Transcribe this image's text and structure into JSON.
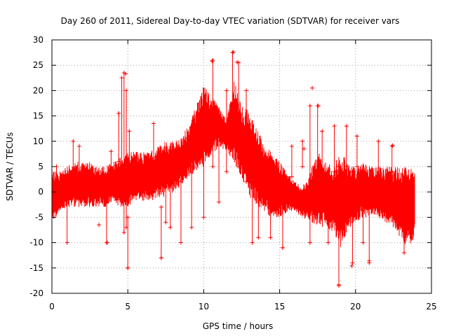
{
  "chart_data": {
    "type": "scatter",
    "title": "Day 260 of 2011, Sidereal Day-to-day VTEC variation (SDTVAR) for receiver vars",
    "xlabel": "GPS time / hours",
    "ylabel": "SDTVAR / TECUs",
    "xlim": [
      0,
      25
    ],
    "ylim": [
      -20,
      30
    ],
    "xticks": [
      0,
      5,
      10,
      15,
      20,
      25
    ],
    "yticks": [
      -20,
      -15,
      -10,
      -5,
      0,
      5,
      10,
      15,
      20,
      25,
      30
    ],
    "grid": true,
    "marker": "+ with error bars",
    "color": "#ff0000",
    "series": [
      {
        "name": "vars",
        "band": [
          {
            "x": 0.0,
            "low": -6,
            "high": 4
          },
          {
            "x": 0.5,
            "low": -4,
            "high": 4
          },
          {
            "x": 1.0,
            "low": -3,
            "high": 5
          },
          {
            "x": 1.5,
            "low": -3,
            "high": 6
          },
          {
            "x": 2.0,
            "low": -3,
            "high": 6
          },
          {
            "x": 2.5,
            "low": -3,
            "high": 6
          },
          {
            "x": 3.0,
            "low": -3,
            "high": 5
          },
          {
            "x": 3.5,
            "low": -3,
            "high": 5
          },
          {
            "x": 4.0,
            "low": -2,
            "high": 6
          },
          {
            "x": 4.5,
            "low": -3,
            "high": 7
          },
          {
            "x": 5.0,
            "low": -3,
            "high": 8
          },
          {
            "x": 5.5,
            "low": -2,
            "high": 8
          },
          {
            "x": 6.0,
            "low": -2,
            "high": 8
          },
          {
            "x": 6.5,
            "low": -2,
            "high": 8
          },
          {
            "x": 7.0,
            "low": -1,
            "high": 9
          },
          {
            "x": 7.5,
            "low": -1,
            "high": 10
          },
          {
            "x": 8.0,
            "low": 0,
            "high": 10
          },
          {
            "x": 8.5,
            "low": 1,
            "high": 11
          },
          {
            "x": 9.0,
            "low": 3,
            "high": 13
          },
          {
            "x": 9.5,
            "low": 4,
            "high": 17
          },
          {
            "x": 10.0,
            "low": 5,
            "high": 21
          },
          {
            "x": 10.5,
            "low": 7,
            "high": 19
          },
          {
            "x": 11.0,
            "low": 9,
            "high": 17
          },
          {
            "x": 11.5,
            "low": 8,
            "high": 14
          },
          {
            "x": 12.0,
            "low": 6,
            "high": 22
          },
          {
            "x": 12.5,
            "low": 2,
            "high": 17
          },
          {
            "x": 13.0,
            "low": -1,
            "high": 16
          },
          {
            "x": 13.5,
            "low": -3,
            "high": 13
          },
          {
            "x": 14.0,
            "low": -4,
            "high": 9
          },
          {
            "x": 14.5,
            "low": -5,
            "high": 8
          },
          {
            "x": 15.0,
            "low": -5,
            "high": 6
          },
          {
            "x": 15.5,
            "low": -4,
            "high": 4
          },
          {
            "x": 16.0,
            "low": -4,
            "high": 2
          },
          {
            "x": 16.5,
            "low": -5,
            "high": 1
          },
          {
            "x": 17.0,
            "low": -6,
            "high": 4
          },
          {
            "x": 17.5,
            "low": -7,
            "high": 8
          },
          {
            "x": 18.0,
            "low": -7,
            "high": 6
          },
          {
            "x": 18.5,
            "low": -8,
            "high": 5
          },
          {
            "x": 19.0,
            "low": -11,
            "high": 8
          },
          {
            "x": 19.5,
            "low": -8,
            "high": 6
          },
          {
            "x": 20.0,
            "low": -6,
            "high": 5
          },
          {
            "x": 20.5,
            "low": -5,
            "high": 6
          },
          {
            "x": 21.0,
            "low": -5,
            "high": 5
          },
          {
            "x": 21.5,
            "low": -5,
            "high": 5
          },
          {
            "x": 22.0,
            "low": -6,
            "high": 5
          },
          {
            "x": 22.5,
            "low": -7,
            "high": 5
          },
          {
            "x": 23.0,
            "low": -10,
            "high": 5
          },
          {
            "x": 23.5,
            "low": -11,
            "high": 5
          },
          {
            "x": 23.9,
            "low": -9,
            "high": 4
          }
        ],
        "spikes": [
          {
            "x": 0.3,
            "low": -2,
            "high": 5
          },
          {
            "x": 1.0,
            "low": -10,
            "high": 1
          },
          {
            "x": 1.4,
            "low": 2,
            "high": 10
          },
          {
            "x": 1.8,
            "low": 2,
            "high": 9
          },
          {
            "x": 3.6,
            "low": -10,
            "high": -2
          },
          {
            "x": 3.9,
            "low": 3,
            "high": 8
          },
          {
            "x": 4.4,
            "low": 6,
            "high": 15.5
          },
          {
            "x": 4.6,
            "low": -2,
            "high": 22.5
          },
          {
            "x": 4.75,
            "low": -8,
            "high": 23.5
          },
          {
            "x": 4.9,
            "low": -7,
            "high": 20
          },
          {
            "x": 5.0,
            "low": -15,
            "high": -5
          },
          {
            "x": 5.1,
            "low": 0,
            "high": 12
          },
          {
            "x": 6.7,
            "low": 2,
            "high": 13.5
          },
          {
            "x": 7.2,
            "low": -13,
            "high": -3
          },
          {
            "x": 7.5,
            "low": -6,
            "high": 6
          },
          {
            "x": 7.8,
            "low": -7,
            "high": 4
          },
          {
            "x": 8.5,
            "low": -10,
            "high": 2
          },
          {
            "x": 9.2,
            "low": -7,
            "high": 5
          },
          {
            "x": 10.0,
            "low": -5,
            "high": 10
          },
          {
            "x": 10.6,
            "low": 5,
            "high": 26
          },
          {
            "x": 11.0,
            "low": -2,
            "high": 10
          },
          {
            "x": 11.5,
            "low": 4,
            "high": 20
          },
          {
            "x": 11.9,
            "low": 10,
            "high": 27.5
          },
          {
            "x": 12.3,
            "low": 5,
            "high": 25.5
          },
          {
            "x": 12.8,
            "low": 2,
            "high": 20
          },
          {
            "x": 13.2,
            "low": -10,
            "high": 5
          },
          {
            "x": 13.6,
            "low": -9,
            "high": 3
          },
          {
            "x": 14.4,
            "low": -9,
            "high": 2
          },
          {
            "x": 15.2,
            "low": -11,
            "high": 2
          },
          {
            "x": 15.8,
            "low": 3,
            "high": 9
          },
          {
            "x": 16.5,
            "low": 5,
            "high": 10
          },
          {
            "x": 17.0,
            "low": -10,
            "high": 17
          },
          {
            "x": 17.5,
            "low": 2,
            "high": 17
          },
          {
            "x": 17.8,
            "low": 3,
            "high": 12
          },
          {
            "x": 18.2,
            "low": -10,
            "high": 4
          },
          {
            "x": 18.6,
            "low": 4,
            "high": 13
          },
          {
            "x": 18.9,
            "low": -18.5,
            "high": 5
          },
          {
            "x": 19.4,
            "low": 5,
            "high": 13
          },
          {
            "x": 19.8,
            "low": -14,
            "high": 4
          },
          {
            "x": 20.1,
            "low": 5,
            "high": 11
          },
          {
            "x": 20.5,
            "low": -10,
            "high": -1
          },
          {
            "x": 20.9,
            "low": -14,
            "high": -2
          },
          {
            "x": 21.5,
            "low": 4,
            "high": 10
          },
          {
            "x": 22.4,
            "low": 4,
            "high": 9
          },
          {
            "x": 23.2,
            "low": -12,
            "high": -3
          },
          {
            "x": 23.7,
            "low": -9,
            "high": -4
          }
        ],
        "outliers": [
          {
            "x": 0.15,
            "y": 1
          },
          {
            "x": 3.1,
            "y": -6.5
          },
          {
            "x": 3.65,
            "y": -10
          },
          {
            "x": 4.85,
            "y": 23.3
          },
          {
            "x": 5.0,
            "y": -15
          },
          {
            "x": 4.4,
            "y": 15.5
          },
          {
            "x": 7.2,
            "y": -13
          },
          {
            "x": 10.55,
            "y": 25.8
          },
          {
            "x": 11.95,
            "y": 27.6
          },
          {
            "x": 12.2,
            "y": 25.6
          },
          {
            "x": 15.2,
            "y": -11
          },
          {
            "x": 16.6,
            "y": 8.5
          },
          {
            "x": 17.15,
            "y": 20.5
          },
          {
            "x": 17.55,
            "y": 17
          },
          {
            "x": 18.9,
            "y": -18.3
          },
          {
            "x": 19.75,
            "y": -14.6
          },
          {
            "x": 20.9,
            "y": -13.6
          },
          {
            "x": 22.45,
            "y": 9.2
          }
        ]
      }
    ]
  }
}
